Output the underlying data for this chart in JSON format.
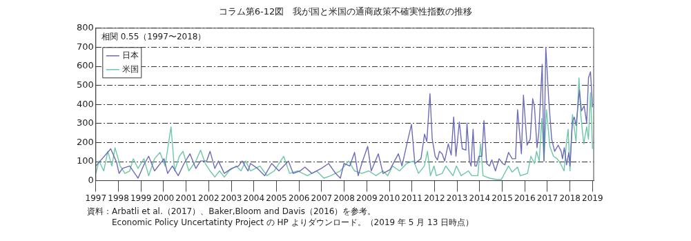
{
  "chart_data": {
    "type": "line",
    "title": "コラム第6-12図　我が国と米国の通商政策不確実性指数の推移",
    "annotations": [
      "相関 0.55（1997〜2018）",
      "資料：Arbatli et al.（2017）、Baker,Bloom and Davis（2016）を参考。",
      "Economic Policy Uncertatinty Project の HP よりダウンロード。（2019 年 5 月 13 日時点）"
    ],
    "xlim": [
      1997,
      2019.05
    ],
    "xticks": [
      1997,
      1998,
      1999,
      2000,
      2001,
      2002,
      2003,
      2004,
      2005,
      2006,
      2007,
      2008,
      2009,
      2010,
      2011,
      2012,
      2013,
      2014,
      2015,
      2016,
      2017,
      2018,
      2019
    ],
    "ylim": [
      0,
      800
    ],
    "yticks": [
      0,
      100,
      200,
      300,
      400,
      500,
      600,
      700,
      800
    ],
    "grid": "y",
    "legend": "top left",
    "marker": "none",
    "line_style": "solid",
    "series": [
      {
        "name": "日本",
        "color": "#6b6bb8",
        "x": [
          1997.0,
          1997.66,
          1997.92,
          1998.03,
          1998.18,
          1998.5,
          1998.87,
          1999.13,
          1999.34,
          1999.6,
          2000.02,
          2000.18,
          2000.39,
          2000.65,
          2000.91,
          2001.17,
          2001.43,
          2001.64,
          2001.91,
          2002.06,
          2002.27,
          2002.43,
          2002.69,
          2003.01,
          2003.32,
          2003.48,
          2003.74,
          2003.85,
          2004.16,
          2004.48,
          2004.79,
          2005.11,
          2005.53,
          2005.74,
          2006.05,
          2006.26,
          2006.57,
          2006.99,
          2007.31,
          2007.62,
          2007.83,
          2007.99,
          2008.25,
          2008.46,
          2008.62,
          2008.78,
          2009.04,
          2009.2,
          2009.51,
          2009.72,
          2010.03,
          2010.4,
          2010.56,
          2010.79,
          2010.98,
          2011.13,
          2011.4,
          2011.56,
          2011.66,
          2011.8,
          2011.9,
          2012.03,
          2012.13,
          2012.22,
          2012.34,
          2012.45,
          2012.61,
          2012.74,
          2012.85,
          2012.95,
          2013.1,
          2013.23,
          2013.39,
          2013.44,
          2013.55,
          2013.62,
          2013.71,
          2013.79,
          2013.86,
          2013.97,
          2014.1,
          2014.19,
          2014.31,
          2014.44,
          2014.54,
          2014.7,
          2014.86,
          2015.02,
          2015.12,
          2015.28,
          2015.44,
          2015.59,
          2015.68,
          2015.85,
          2015.94,
          2016.1,
          2016.24,
          2016.35,
          2016.43,
          2016.54,
          2016.62,
          2016.77,
          2016.85,
          2016.93,
          2017.06,
          2017.19,
          2017.32,
          2017.48,
          2017.61,
          2017.67,
          2017.75,
          2017.85,
          2017.95,
          2018.0,
          2018.11,
          2018.19,
          2018.27,
          2018.42,
          2018.51,
          2018.63,
          2018.74,
          2018.82,
          2018.91,
          2019.0
        ],
        "values": [
          77,
          167,
          96,
          38,
          64,
          77,
          13,
          83,
          128,
          51,
          115,
          38,
          77,
          26,
          90,
          141,
          64,
          103,
          103,
          154,
          64,
          103,
          38,
          64,
          77,
          103,
          51,
          90,
          64,
          26,
          90,
          51,
          103,
          38,
          51,
          71,
          38,
          64,
          90,
          38,
          13,
          90,
          77,
          148,
          26,
          90,
          180,
          51,
          141,
          38,
          58,
          141,
          77,
          199,
          295,
          90,
          115,
          244,
          205,
          456,
          218,
          128,
          109,
          154,
          141,
          103,
          193,
          135,
          334,
          128,
          308,
          167,
          160,
          302,
          103,
          77,
          270,
          77,
          77,
          128,
          128,
          315,
          90,
          77,
          109,
          51,
          115,
          90,
          83,
          148,
          115,
          115,
          372,
          141,
          449,
          186,
          218,
          430,
          385,
          173,
          250,
          610,
          103,
          700,
          424,
          218,
          154,
          186,
          154,
          115,
          173,
          83,
          148,
          77,
          308,
          334,
          289,
          475,
          366,
          392,
          302,
          539,
          571,
          385
        ]
      },
      {
        "name": "米国",
        "color": "#6cc7a6",
        "x": [
          1997.0,
          1997.14,
          1997.35,
          1997.53,
          1997.71,
          1997.85,
          1998.08,
          1998.29,
          1998.5,
          1998.66,
          1998.87,
          1999.13,
          1999.34,
          1999.6,
          1999.84,
          2000.07,
          2000.33,
          2000.49,
          2000.7,
          2000.86,
          2001.12,
          2001.43,
          2001.64,
          2001.85,
          2002.06,
          2002.27,
          2002.48,
          2002.69,
          2002.9,
          2003.22,
          2003.43,
          2003.64,
          2003.85,
          2004.27,
          2004.58,
          2004.9,
          2005.32,
          2005.58,
          2005.95,
          2006.37,
          2006.78,
          2007.1,
          2007.41,
          2007.83,
          2008.2,
          2008.46,
          2008.78,
          2009.09,
          2009.41,
          2009.72,
          2009.93,
          2010.14,
          2010.45,
          2010.77,
          2011.08,
          2011.29,
          2011.55,
          2011.69,
          2011.82,
          2011.98,
          2012.08,
          2012.34,
          2012.5,
          2012.66,
          2012.82,
          2012.97,
          2013.18,
          2013.5,
          2013.65,
          2013.92,
          2014.04,
          2014.15,
          2014.44,
          2014.75,
          2014.96,
          2015.28,
          2015.44,
          2015.68,
          2015.8,
          2016.12,
          2016.27,
          2016.43,
          2016.52,
          2016.64,
          2016.75,
          2016.85,
          2016.96,
          2017.11,
          2017.27,
          2017.43,
          2017.58,
          2017.74,
          2017.85,
          2017.92,
          2018.0,
          2018.11,
          2018.27,
          2018.4,
          2018.48,
          2018.61,
          2018.74,
          2018.82,
          2018.91,
          2019.0
        ],
        "values": [
          38,
          103,
          51,
          154,
          77,
          173,
          77,
          38,
          51,
          115,
          64,
          115,
          26,
          115,
          148,
          77,
          282,
          51,
          128,
          154,
          51,
          103,
          160,
          90,
          51,
          19,
          51,
          19,
          51,
          77,
          51,
          103,
          51,
          77,
          26,
          51,
          128,
          38,
          51,
          26,
          51,
          13,
          26,
          51,
          103,
          51,
          38,
          51,
          26,
          51,
          26,
          77,
          51,
          90,
          103,
          38,
          77,
          154,
          26,
          77,
          26,
          38,
          77,
          51,
          26,
          77,
          26,
          51,
          26,
          26,
          193,
          26,
          13,
          6,
          6,
          77,
          45,
          71,
          26,
          38,
          128,
          90,
          154,
          103,
          327,
          103,
          372,
          180,
          128,
          115,
          90,
          51,
          205,
          270,
          51,
          347,
          205,
          539,
          347,
          193,
          282,
          218,
          462,
          167
        ]
      }
    ]
  }
}
